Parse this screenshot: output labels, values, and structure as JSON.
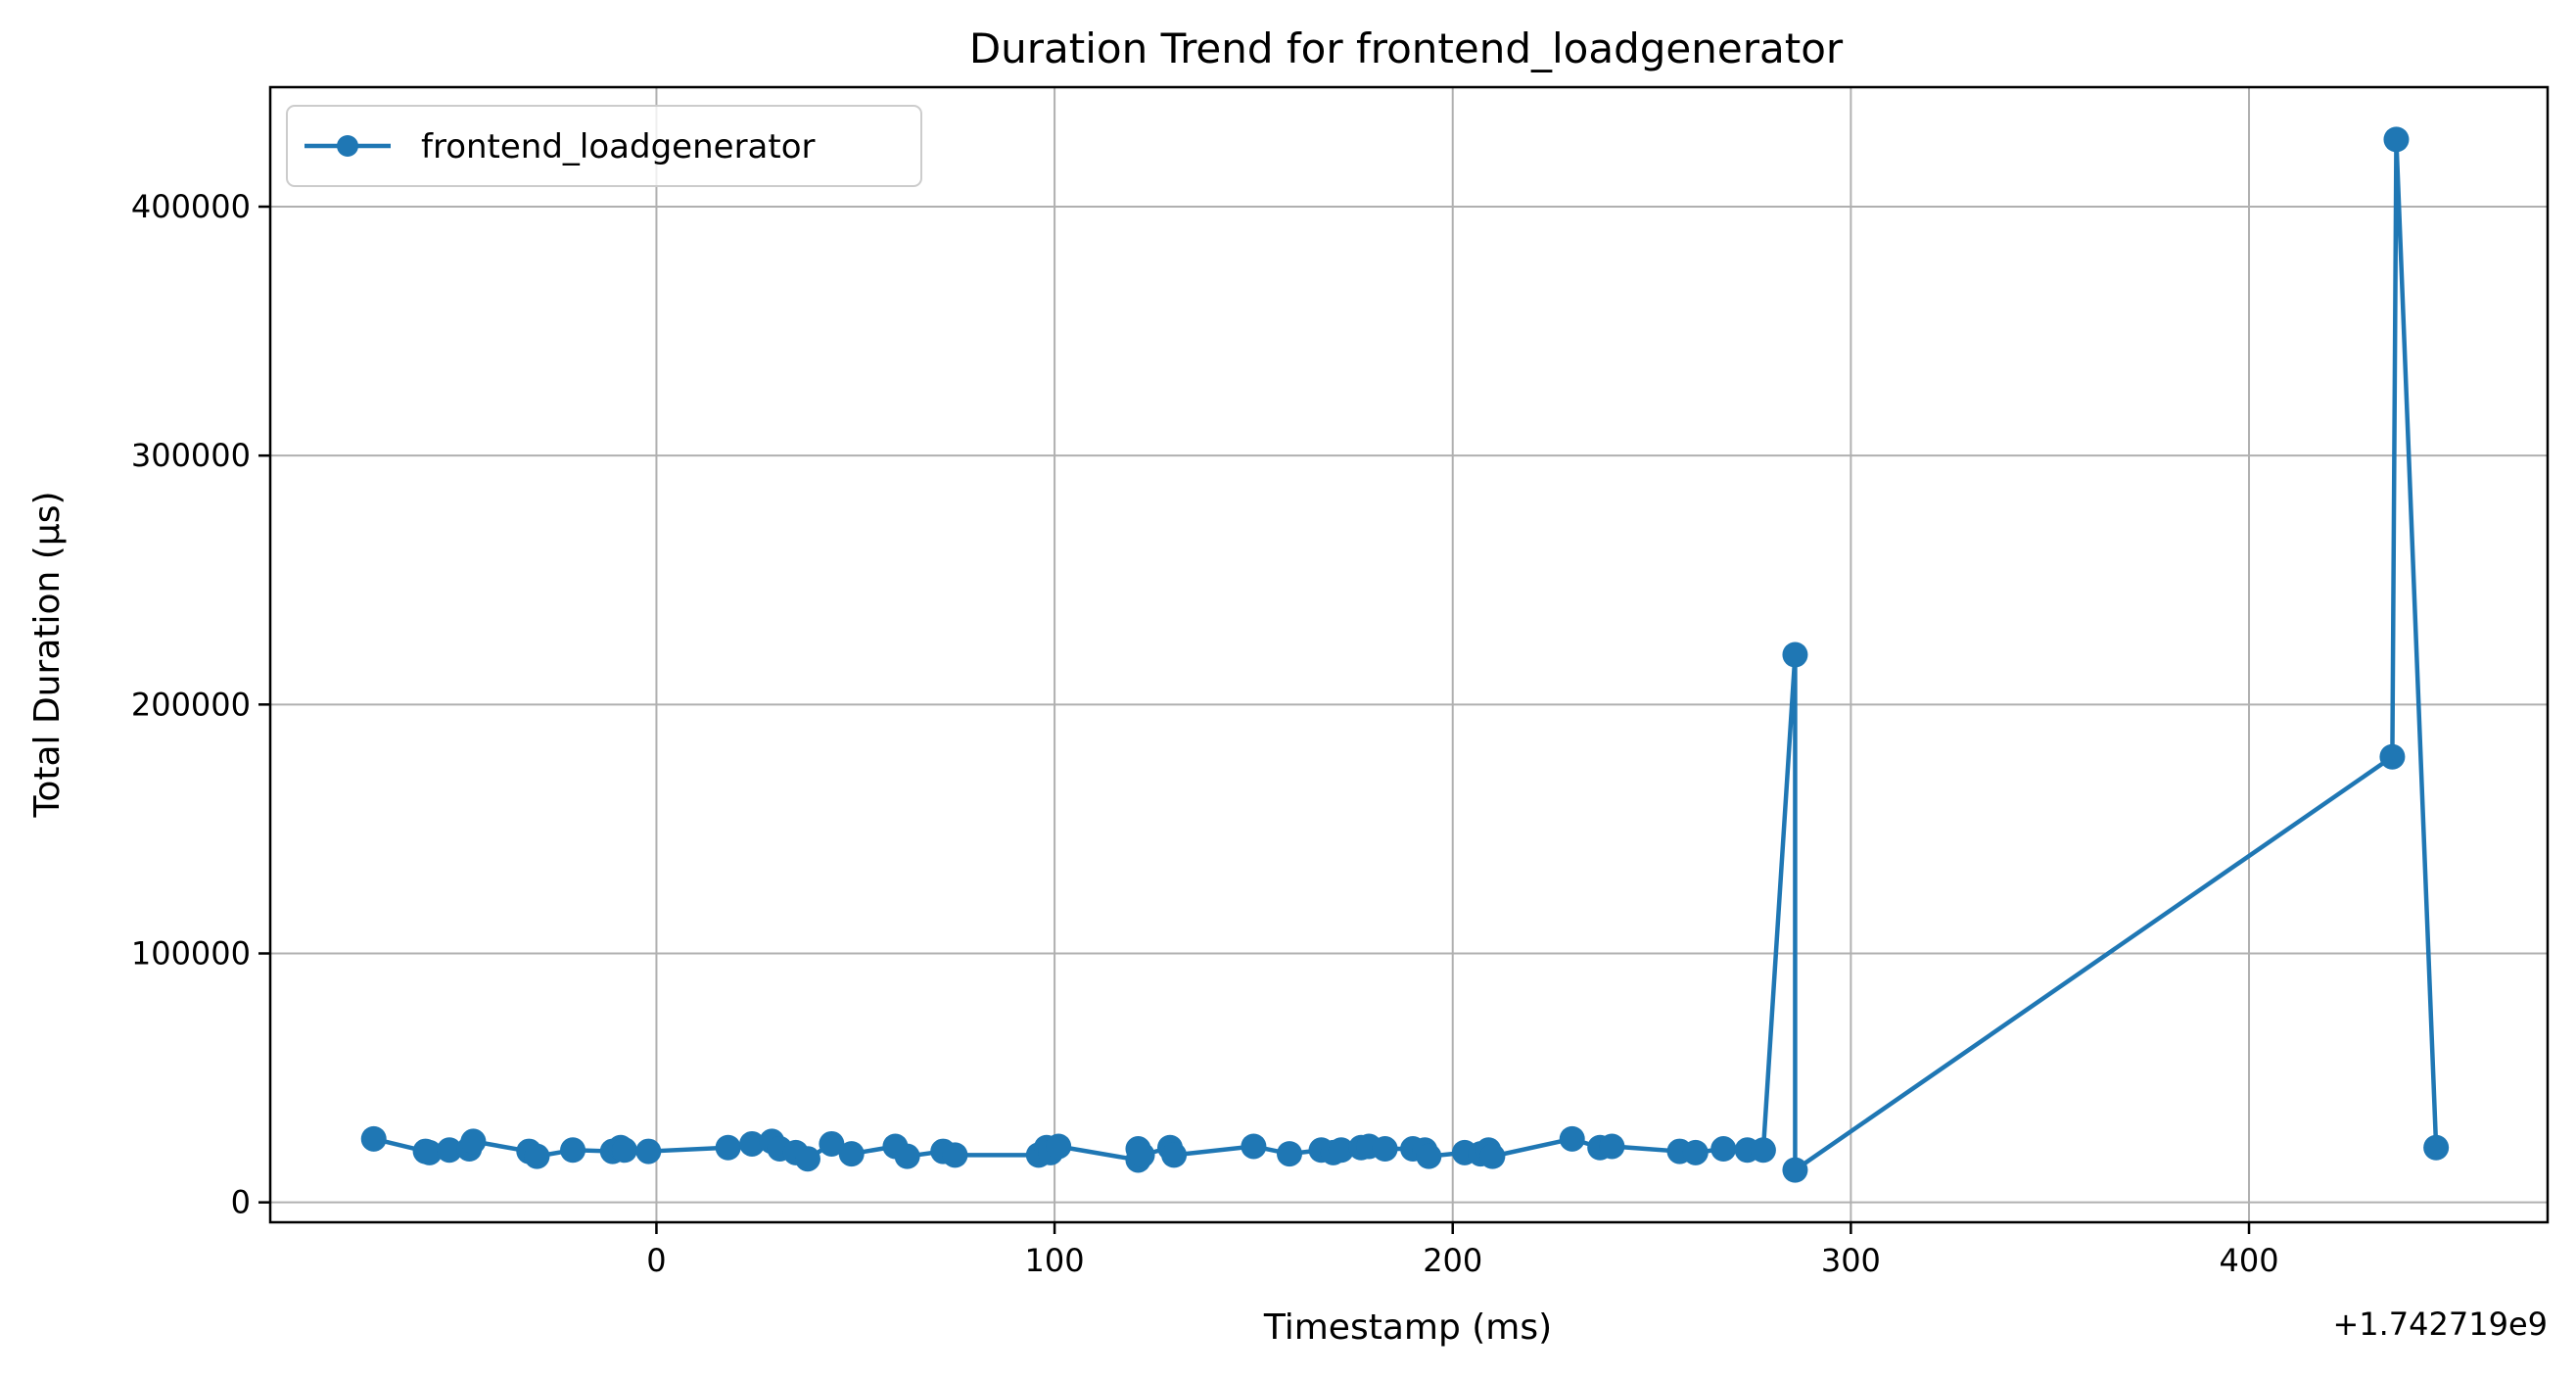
{
  "chart_data": {
    "type": "line",
    "title": "Duration Trend for frontend_loadgenerator",
    "xlabel": "Timestamp (ms)",
    "ylabel": "Total Duration (µs)",
    "x_offset_label": "+1.742719e9",
    "xlim": [
      -97,
      475
    ],
    "ylim": [
      -8000,
      448000
    ],
    "xticks": [
      0,
      100,
      200,
      300,
      400
    ],
    "yticks": [
      0,
      100000,
      200000,
      300000,
      400000
    ],
    "grid": true,
    "legend_position": "top-left",
    "series": [
      {
        "name": "frontend_loadgenerator",
        "color": "#1f77b4",
        "marker": "circle",
        "points": [
          [
            -71,
            25500
          ],
          [
            -58,
            20500
          ],
          [
            -57,
            20000
          ],
          [
            -52,
            21000
          ],
          [
            -47,
            21500
          ],
          [
            -46,
            24500
          ],
          [
            -32,
            20500
          ],
          [
            -30,
            18500
          ],
          [
            -21,
            21000
          ],
          [
            -11,
            20500
          ],
          [
            -9,
            22000
          ],
          [
            -8,
            21000
          ],
          [
            -2,
            20500
          ],
          [
            18,
            22000
          ],
          [
            24,
            23500
          ],
          [
            29,
            24500
          ],
          [
            31,
            21500
          ],
          [
            35,
            20000
          ],
          [
            38,
            17500
          ],
          [
            44,
            23500
          ],
          [
            49,
            19500
          ],
          [
            60,
            22500
          ],
          [
            63,
            18500
          ],
          [
            72,
            20500
          ],
          [
            75,
            19000
          ],
          [
            96,
            19000
          ],
          [
            98,
            22000
          ],
          [
            99,
            20000
          ],
          [
            101,
            22500
          ],
          [
            121,
            17000
          ],
          [
            121,
            21500
          ],
          [
            122,
            19000
          ],
          [
            129,
            22000
          ],
          [
            130,
            19000
          ],
          [
            150,
            22500
          ],
          [
            159,
            19500
          ],
          [
            167,
            21000
          ],
          [
            170,
            20000
          ],
          [
            172,
            21000
          ],
          [
            177,
            22000
          ],
          [
            179,
            22500
          ],
          [
            183,
            21500
          ],
          [
            190,
            21500
          ],
          [
            193,
            21000
          ],
          [
            194,
            18500
          ],
          [
            203,
            20000
          ],
          [
            207,
            19500
          ],
          [
            209,
            21000
          ],
          [
            210,
            18500
          ],
          [
            230,
            25500
          ],
          [
            237,
            22000
          ],
          [
            240,
            22500
          ],
          [
            257,
            20500
          ],
          [
            261,
            20000
          ],
          [
            268,
            21500
          ],
          [
            274,
            21000
          ],
          [
            278,
            21000
          ],
          [
            286,
            220000
          ],
          [
            286,
            13000
          ],
          [
            436,
            179000
          ],
          [
            437,
            427000
          ],
          [
            447,
            22000
          ]
        ]
      }
    ]
  }
}
